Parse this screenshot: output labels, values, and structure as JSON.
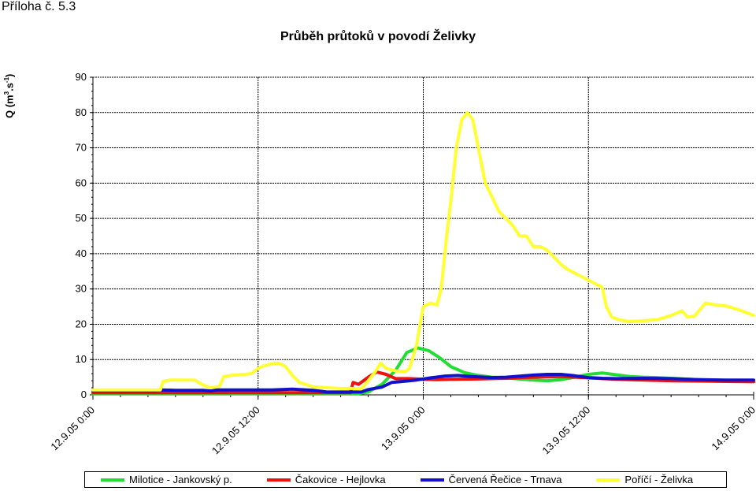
{
  "page_label": "Příloha č. 5.3",
  "chart_data": {
    "type": "line",
    "title": "Průběh průtoků v povodí Želivky",
    "ylabel": "Q (m",
    "ylabel_sup1": "3",
    "ylabel_mid": ".s",
    "ylabel_sup2": "-1",
    "ylabel_end": ")",
    "ylim": [
      0,
      90
    ],
    "yticks": [
      0,
      10,
      20,
      30,
      40,
      50,
      60,
      70,
      80,
      90
    ],
    "xlim": [
      0,
      48
    ],
    "xticks": [
      {
        "x": 0,
        "label": "12.9.05 0:00"
      },
      {
        "x": 12,
        "label": "12.9.05 12:00"
      },
      {
        "x": 24,
        "label": "13.9.05 0:00"
      },
      {
        "x": 36,
        "label": "13.9.05 12:00"
      },
      {
        "x": 48,
        "label": "14.9.05 0:00"
      }
    ],
    "grid": true,
    "legend_position": "bottom",
    "series": [
      {
        "name": "Milotice - Jankovský p.",
        "color": "#22dd33",
        "points": [
          [
            0,
            0.3
          ],
          [
            10,
            0.3
          ],
          [
            18,
            0.3
          ],
          [
            19.2,
            0.3
          ],
          [
            20,
            0.8
          ],
          [
            21,
            3
          ],
          [
            22,
            7
          ],
          [
            22.8,
            12
          ],
          [
            23.6,
            13.3
          ],
          [
            24.4,
            12.5
          ],
          [
            25.2,
            10.5
          ],
          [
            26,
            8
          ],
          [
            27,
            6.3
          ],
          [
            28,
            5.5
          ],
          [
            29,
            5
          ],
          [
            30,
            4.8
          ],
          [
            31,
            4.5
          ],
          [
            32,
            4.2
          ],
          [
            33,
            4
          ],
          [
            34,
            4.3
          ],
          [
            35,
            5
          ],
          [
            36,
            5.8
          ],
          [
            37,
            6.2
          ],
          [
            38,
            5.7
          ],
          [
            39,
            5.2
          ],
          [
            40,
            5
          ],
          [
            41,
            4.9
          ],
          [
            42,
            4.7
          ],
          [
            43,
            4.5
          ],
          [
            44,
            4.3
          ],
          [
            46,
            4.1
          ],
          [
            48,
            4
          ]
        ]
      },
      {
        "name": "Čakovice - Hejlovka",
        "color": "#ee1111",
        "points": [
          [
            0,
            0.6
          ],
          [
            18.7,
            0.6
          ],
          [
            18.9,
            3.5
          ],
          [
            19.3,
            3
          ],
          [
            20,
            5
          ],
          [
            20.6,
            6.5
          ],
          [
            21.3,
            5.8
          ],
          [
            22,
            4.6
          ],
          [
            23,
            4.6
          ],
          [
            24,
            4.4
          ],
          [
            25,
            4.3
          ],
          [
            26,
            4.4
          ],
          [
            28,
            4.5
          ],
          [
            30,
            4.7
          ],
          [
            32,
            5
          ],
          [
            34,
            5.2
          ],
          [
            36,
            4.8
          ],
          [
            38,
            4.4
          ],
          [
            40,
            4.2
          ],
          [
            42,
            4
          ],
          [
            44,
            3.9
          ],
          [
            46,
            3.8
          ],
          [
            48,
            3.7
          ]
        ]
      },
      {
        "name": "Červená Řečice - Trnava",
        "color": "#1111cc",
        "points": [
          [
            0,
            1.2
          ],
          [
            4.5,
            1.2
          ],
          [
            5,
            1.4
          ],
          [
            6,
            1.3
          ],
          [
            8,
            1.3
          ],
          [
            8.6,
            1.1
          ],
          [
            9,
            1.4
          ],
          [
            11,
            1.4
          ],
          [
            13,
            1.4
          ],
          [
            14.5,
            1.6
          ],
          [
            16,
            1.3
          ],
          [
            17,
            0.8
          ],
          [
            19.5,
            0.8
          ],
          [
            20,
            1.5
          ],
          [
            21,
            2.2
          ],
          [
            21.7,
            3.5
          ],
          [
            22.5,
            3.8
          ],
          [
            23.5,
            4.2
          ],
          [
            24.5,
            4.8
          ],
          [
            25.5,
            5.3
          ],
          [
            26.5,
            5.5
          ],
          [
            27.5,
            5.2
          ],
          [
            29,
            4.9
          ],
          [
            30,
            5
          ],
          [
            31,
            5.3
          ],
          [
            32,
            5.6
          ],
          [
            33,
            5.8
          ],
          [
            34,
            5.8
          ],
          [
            35,
            5.4
          ],
          [
            36,
            4.9
          ],
          [
            37,
            4.7
          ],
          [
            38,
            4.6
          ],
          [
            40,
            4.7
          ],
          [
            42,
            4.6
          ],
          [
            44,
            4.3
          ],
          [
            46,
            4.2
          ],
          [
            48,
            4.2
          ]
        ]
      },
      {
        "name": "Poříčí - Želivka",
        "color": "#ffff33",
        "points": [
          [
            0,
            1.4
          ],
          [
            4.9,
            1.4
          ],
          [
            5.1,
            3.8
          ],
          [
            5.6,
            4.2
          ],
          [
            7.4,
            4.2
          ],
          [
            7.9,
            3
          ],
          [
            8.5,
            2
          ],
          [
            9.2,
            2.4
          ],
          [
            9.5,
            5.2
          ],
          [
            10,
            5.5
          ],
          [
            11,
            5.8
          ],
          [
            11.5,
            6
          ],
          [
            12,
            7.5
          ],
          [
            12.5,
            8.3
          ],
          [
            13,
            8.8
          ],
          [
            13.5,
            9
          ],
          [
            14,
            8
          ],
          [
            14.5,
            5.5
          ],
          [
            15,
            3.5
          ],
          [
            16,
            2.3
          ],
          [
            17,
            2
          ],
          [
            18,
            1.8
          ],
          [
            19,
            1.8
          ],
          [
            19.5,
            1.7
          ],
          [
            20,
            4
          ],
          [
            20.5,
            6.5
          ],
          [
            20.9,
            9
          ],
          [
            21.3,
            7.5
          ],
          [
            22,
            6.8
          ],
          [
            22.7,
            6.6
          ],
          [
            23,
            7.5
          ],
          [
            23.5,
            14
          ],
          [
            24,
            25
          ],
          [
            24.5,
            26
          ],
          [
            25,
            25.5
          ],
          [
            25.3,
            30
          ],
          [
            25.7,
            45
          ],
          [
            26,
            55
          ],
          [
            26.4,
            70
          ],
          [
            26.8,
            78
          ],
          [
            27.2,
            80
          ],
          [
            27.6,
            78
          ],
          [
            28,
            70
          ],
          [
            28.5,
            60
          ],
          [
            29,
            56
          ],
          [
            29.5,
            52
          ],
          [
            30,
            50
          ],
          [
            30.5,
            48
          ],
          [
            31,
            45
          ],
          [
            31.5,
            45
          ],
          [
            32,
            42
          ],
          [
            32.5,
            42
          ],
          [
            33,
            41
          ],
          [
            33.5,
            39
          ],
          [
            34,
            37
          ],
          [
            34.5,
            35.5
          ],
          [
            35,
            34.5
          ],
          [
            35.5,
            33.5
          ],
          [
            36,
            32.5
          ],
          [
            36.5,
            31.5
          ],
          [
            37,
            30.5
          ],
          [
            37.3,
            25
          ],
          [
            37.7,
            22
          ],
          [
            38.3,
            21.2
          ],
          [
            39,
            20.8
          ],
          [
            40,
            21
          ],
          [
            41,
            21.3
          ],
          [
            42,
            22.5
          ],
          [
            42.8,
            23.8
          ],
          [
            43.2,
            22
          ],
          [
            43.7,
            22.3
          ],
          [
            44.5,
            26
          ],
          [
            45.2,
            25.5
          ],
          [
            46,
            25.2
          ],
          [
            47,
            24
          ],
          [
            48,
            22.5
          ]
        ]
      }
    ]
  }
}
